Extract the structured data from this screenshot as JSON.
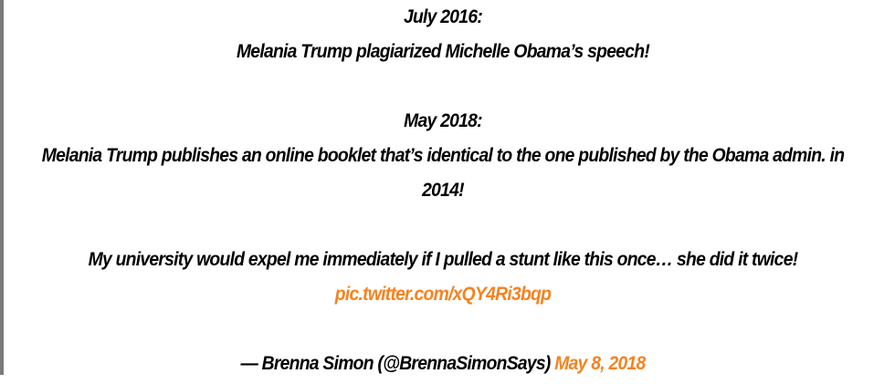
{
  "tweet": {
    "line1": "July 2016:",
    "line2": "Melania Trump plagiarized Michelle Obama’s speech!",
    "line3": "May 2018:",
    "line4": "Melania Trump publishes an online booklet that’s identical to the one published by the Obama admin. in 2014!",
    "line5": "My university would expel me immediately if I pulled a stunt like this once… she did it twice!",
    "pic_link": "pic.twitter.com/xQY4Ri3bqp",
    "attribution": "— Brenna Simon (@BrennaSimonSays)",
    "date_link": "May 8, 2018"
  },
  "colors": {
    "text": "#000000",
    "link": "#f6821f",
    "left_border": "#7a7a7a"
  }
}
